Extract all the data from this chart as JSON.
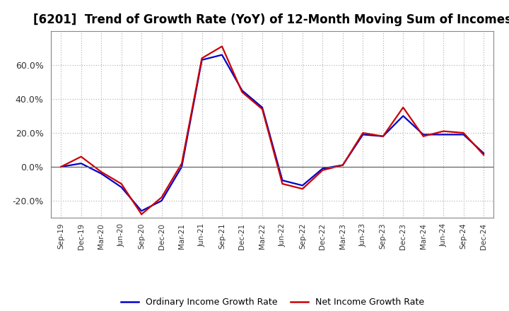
{
  "title": "[6201]  Trend of Growth Rate (YoY) of 12-Month Moving Sum of Incomes",
  "title_fontsize": 12,
  "ylim": [
    -0.3,
    0.8
  ],
  "yticks": [
    -0.2,
    0.0,
    0.2,
    0.4,
    0.6
  ],
  "background_color": "#ffffff",
  "plot_bg_color": "#ffffff",
  "grid_color": "#aaaaaa",
  "legend_labels": [
    "Ordinary Income Growth Rate",
    "Net Income Growth Rate"
  ],
  "legend_colors": [
    "#0000cc",
    "#cc0000"
  ],
  "x_labels": [
    "Sep-19",
    "Dec-19",
    "Mar-20",
    "Jun-20",
    "Sep-20",
    "Dec-20",
    "Mar-21",
    "Jun-21",
    "Sep-21",
    "Dec-21",
    "Mar-22",
    "Jun-22",
    "Sep-22",
    "Dec-22",
    "Mar-23",
    "Jun-23",
    "Sep-23",
    "Dec-23",
    "Mar-24",
    "Jun-24",
    "Sep-24",
    "Dec-24"
  ],
  "ordinary_income": [
    0.0,
    0.02,
    -0.04,
    -0.12,
    -0.26,
    -0.2,
    0.0,
    0.63,
    0.66,
    0.45,
    0.35,
    -0.08,
    -0.11,
    -0.01,
    0.01,
    0.19,
    0.18,
    0.3,
    0.19,
    0.19,
    0.19,
    0.08
  ],
  "net_income": [
    0.0,
    0.06,
    -0.03,
    -0.1,
    -0.28,
    -0.18,
    0.02,
    0.64,
    0.71,
    0.44,
    0.34,
    -0.1,
    -0.13,
    -0.02,
    0.01,
    0.2,
    0.18,
    0.35,
    0.18,
    0.21,
    0.2,
    0.07
  ]
}
